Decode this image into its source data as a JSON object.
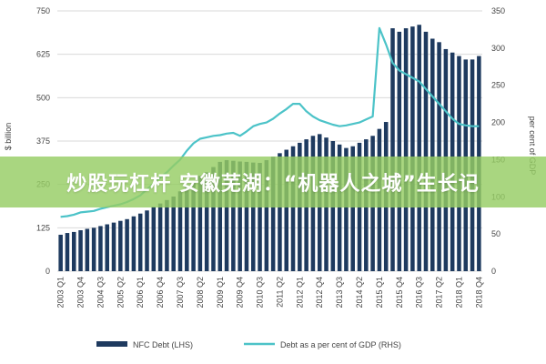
{
  "overlay": {
    "text": "炒股玩杠杆 安徽芜湖：“机器人之城”生长记"
  },
  "colors": {
    "bar": "#1e3a5f",
    "line": "#4cc3c8",
    "grid": "#d9d9d9",
    "text": "#444444",
    "banner": "#8dc85c"
  },
  "chart_data": {
    "type": "bar+line",
    "x": [
      "2003 Q1",
      "2003 Q2",
      "2003 Q3",
      "2003 Q4",
      "2004 Q1",
      "2004 Q2",
      "2004 Q3",
      "2004 Q4",
      "2005 Q1",
      "2005 Q2",
      "2005 Q3",
      "2005 Q4",
      "2006 Q1",
      "2006 Q2",
      "2006 Q3",
      "2006 Q4",
      "2007 Q1",
      "2007 Q2",
      "2007 Q3",
      "2007 Q4",
      "2008 Q1",
      "2008 Q2",
      "2008 Q3",
      "2008 Q4",
      "2009 Q1",
      "2009 Q2",
      "2009 Q3",
      "2009 Q4",
      "2010 Q1",
      "2010 Q2",
      "2010 Q3",
      "2010 Q4",
      "2011 Q1",
      "2011 Q2",
      "2011 Q3",
      "2011 Q4",
      "2012 Q1",
      "2012 Q2",
      "2012 Q3",
      "2012 Q4",
      "2013 Q1",
      "2013 Q2",
      "2013 Q3",
      "2013 Q4",
      "2014 Q1",
      "2014 Q2",
      "2014 Q3",
      "2014 Q4",
      "2015 Q1",
      "2015 Q2",
      "2015 Q3",
      "2015 Q4",
      "2016 Q1",
      "2016 Q2",
      "2016 Q3",
      "2016 Q4",
      "2017 Q1",
      "2017 Q2",
      "2017 Q3",
      "2017 Q4",
      "2018 Q1",
      "2018 Q2",
      "2018 Q3",
      "2018 Q4"
    ],
    "x_tick_labels": [
      "2003 Q1",
      "2003 Q4",
      "2004 Q3",
      "2005 Q2",
      "2006 Q1",
      "2006 Q4",
      "2007 Q3",
      "2008 Q2",
      "2009 Q1",
      "2009 Q4",
      "2010 Q3",
      "2011 Q2",
      "2012 Q1",
      "2012 Q4",
      "2013 Q3",
      "2014 Q2",
      "2015 Q1",
      "2015 Q4",
      "2016 Q3",
      "2017 Q2",
      "2018 Q1",
      "2018 Q4"
    ],
    "series": [
      {
        "name": "NFC Debt (LHS)",
        "type": "bar",
        "axis": "left",
        "values": [
          105,
          110,
          113,
          118,
          122,
          125,
          130,
          135,
          140,
          145,
          150,
          158,
          166,
          175,
          185,
          195,
          205,
          215,
          230,
          245,
          260,
          275,
          285,
          300,
          315,
          320,
          318,
          316,
          315,
          313,
          312,
          320,
          330,
          340,
          350,
          360,
          370,
          380,
          390,
          395,
          385,
          375,
          365,
          355,
          360,
          370,
          380,
          390,
          410,
          430,
          700,
          690,
          700,
          705,
          710,
          690,
          670,
          660,
          640,
          630,
          620,
          610,
          610,
          620
        ]
      },
      {
        "name": "Debt as a per cent of GDP (RHS)",
        "type": "line",
        "axis": "right",
        "values": [
          73,
          74,
          76,
          79,
          80,
          81,
          84,
          86,
          88,
          90,
          93,
          97,
          102,
          110,
          118,
          126,
          133,
          142,
          150,
          162,
          172,
          178,
          180,
          182,
          183,
          185,
          186,
          182,
          188,
          195,
          198,
          200,
          205,
          212,
          218,
          225,
          225,
          215,
          208,
          203,
          200,
          197,
          195,
          196,
          198,
          200,
          204,
          208,
          327,
          305,
          280,
          270,
          265,
          260,
          255,
          245,
          235,
          225,
          215,
          205,
          198,
          196,
          195,
          195
        ]
      }
    ],
    "y_left": {
      "label": "$ billion",
      "ticks": [
        0,
        125,
        250,
        375,
        500,
        625,
        750
      ],
      "ylim": [
        0,
        750
      ]
    },
    "y_right": {
      "label": "per cent of GDP",
      "ticks": [
        0,
        50,
        100,
        150,
        200,
        250,
        300,
        350
      ],
      "ylim": [
        0,
        350
      ]
    },
    "grid": true,
    "legend_position": "bottom"
  }
}
